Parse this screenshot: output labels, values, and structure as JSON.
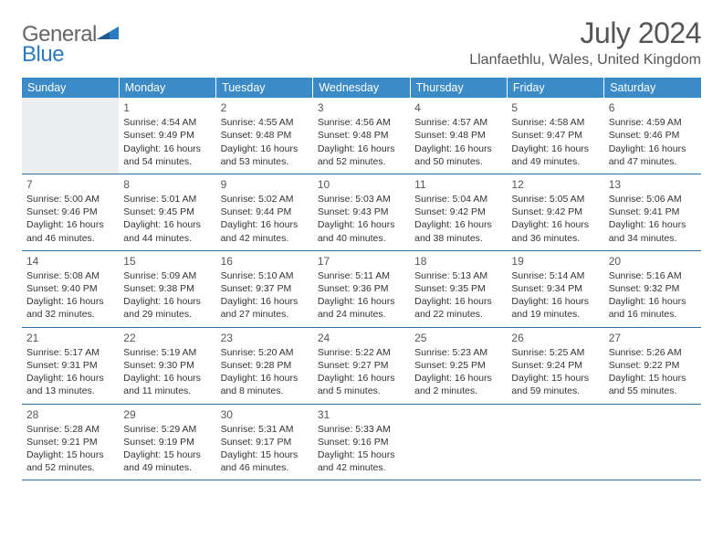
{
  "logo": {
    "line1": "General",
    "line2": "Blue"
  },
  "title": "July 2024",
  "location": "Llanfaethlu, Wales, United Kingdom",
  "colors": {
    "header_bg": "#3b8bc9",
    "header_text": "#ffffff",
    "rule": "#2e6da4",
    "logo_blue": "#2a7bbf",
    "text": "#333333"
  },
  "weekdays": [
    "Sunday",
    "Monday",
    "Tuesday",
    "Wednesday",
    "Thursday",
    "Friday",
    "Saturday"
  ],
  "weeks": [
    [
      null,
      {
        "n": "1",
        "sr": "4:54 AM",
        "ss": "9:49 PM",
        "dl": "16 hours and 54 minutes."
      },
      {
        "n": "2",
        "sr": "4:55 AM",
        "ss": "9:48 PM",
        "dl": "16 hours and 53 minutes."
      },
      {
        "n": "3",
        "sr": "4:56 AM",
        "ss": "9:48 PM",
        "dl": "16 hours and 52 minutes."
      },
      {
        "n": "4",
        "sr": "4:57 AM",
        "ss": "9:48 PM",
        "dl": "16 hours and 50 minutes."
      },
      {
        "n": "5",
        "sr": "4:58 AM",
        "ss": "9:47 PM",
        "dl": "16 hours and 49 minutes."
      },
      {
        "n": "6",
        "sr": "4:59 AM",
        "ss": "9:46 PM",
        "dl": "16 hours and 47 minutes."
      }
    ],
    [
      {
        "n": "7",
        "sr": "5:00 AM",
        "ss": "9:46 PM",
        "dl": "16 hours and 46 minutes."
      },
      {
        "n": "8",
        "sr": "5:01 AM",
        "ss": "9:45 PM",
        "dl": "16 hours and 44 minutes."
      },
      {
        "n": "9",
        "sr": "5:02 AM",
        "ss": "9:44 PM",
        "dl": "16 hours and 42 minutes."
      },
      {
        "n": "10",
        "sr": "5:03 AM",
        "ss": "9:43 PM",
        "dl": "16 hours and 40 minutes."
      },
      {
        "n": "11",
        "sr": "5:04 AM",
        "ss": "9:42 PM",
        "dl": "16 hours and 38 minutes."
      },
      {
        "n": "12",
        "sr": "5:05 AM",
        "ss": "9:42 PM",
        "dl": "16 hours and 36 minutes."
      },
      {
        "n": "13",
        "sr": "5:06 AM",
        "ss": "9:41 PM",
        "dl": "16 hours and 34 minutes."
      }
    ],
    [
      {
        "n": "14",
        "sr": "5:08 AM",
        "ss": "9:40 PM",
        "dl": "16 hours and 32 minutes."
      },
      {
        "n": "15",
        "sr": "5:09 AM",
        "ss": "9:38 PM",
        "dl": "16 hours and 29 minutes."
      },
      {
        "n": "16",
        "sr": "5:10 AM",
        "ss": "9:37 PM",
        "dl": "16 hours and 27 minutes."
      },
      {
        "n": "17",
        "sr": "5:11 AM",
        "ss": "9:36 PM",
        "dl": "16 hours and 24 minutes."
      },
      {
        "n": "18",
        "sr": "5:13 AM",
        "ss": "9:35 PM",
        "dl": "16 hours and 22 minutes."
      },
      {
        "n": "19",
        "sr": "5:14 AM",
        "ss": "9:34 PM",
        "dl": "16 hours and 19 minutes."
      },
      {
        "n": "20",
        "sr": "5:16 AM",
        "ss": "9:32 PM",
        "dl": "16 hours and 16 minutes."
      }
    ],
    [
      {
        "n": "21",
        "sr": "5:17 AM",
        "ss": "9:31 PM",
        "dl": "16 hours and 13 minutes."
      },
      {
        "n": "22",
        "sr": "5:19 AM",
        "ss": "9:30 PM",
        "dl": "16 hours and 11 minutes."
      },
      {
        "n": "23",
        "sr": "5:20 AM",
        "ss": "9:28 PM",
        "dl": "16 hours and 8 minutes."
      },
      {
        "n": "24",
        "sr": "5:22 AM",
        "ss": "9:27 PM",
        "dl": "16 hours and 5 minutes."
      },
      {
        "n": "25",
        "sr": "5:23 AM",
        "ss": "9:25 PM",
        "dl": "16 hours and 2 minutes."
      },
      {
        "n": "26",
        "sr": "5:25 AM",
        "ss": "9:24 PM",
        "dl": "15 hours and 59 minutes."
      },
      {
        "n": "27",
        "sr": "5:26 AM",
        "ss": "9:22 PM",
        "dl": "15 hours and 55 minutes."
      }
    ],
    [
      {
        "n": "28",
        "sr": "5:28 AM",
        "ss": "9:21 PM",
        "dl": "15 hours and 52 minutes."
      },
      {
        "n": "29",
        "sr": "5:29 AM",
        "ss": "9:19 PM",
        "dl": "15 hours and 49 minutes."
      },
      {
        "n": "30",
        "sr": "5:31 AM",
        "ss": "9:17 PM",
        "dl": "15 hours and 46 minutes."
      },
      {
        "n": "31",
        "sr": "5:33 AM",
        "ss": "9:16 PM",
        "dl": "15 hours and 42 minutes."
      },
      null,
      null,
      null
    ]
  ],
  "labels": {
    "sunrise": "Sunrise: ",
    "sunset": "Sunset: ",
    "daylight": "Daylight: "
  }
}
